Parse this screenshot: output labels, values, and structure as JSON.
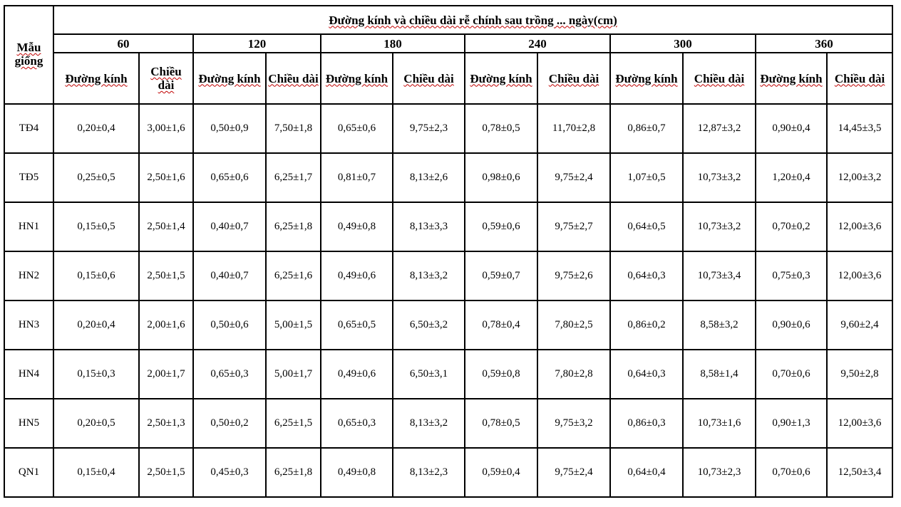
{
  "table": {
    "row_header": "Mẫu giống",
    "title": "Đường kính và chiều dài rễ chính sau trồng ... ngày(cm)",
    "days": [
      "60",
      "120",
      "180",
      "240",
      "300",
      "360"
    ],
    "sub_headers": [
      "Đường kính",
      "Chiều dài",
      "Đường kính",
      "Chiều dài",
      "Đường kính",
      "Chiều dài",
      "Đường kính",
      "Chiều dài",
      "Đường kính",
      "Chiều dài",
      "Đường kính",
      "Chiều dài"
    ],
    "rows": [
      {
        "name": "TĐ4",
        "cells": [
          "0,20±0,4",
          "3,00±1,6",
          "0,50±0,9",
          "7,50±1,8",
          "0,65±0,6",
          "9,75±2,3",
          "0,78±0,5",
          "11,70±2,8",
          "0,86±0,7",
          "12,87±3,2",
          "0,90±0,4",
          "14,45±3,5"
        ]
      },
      {
        "name": "TĐ5",
        "cells": [
          "0,25±0,5",
          "2,50±1,6",
          "0,65±0,6",
          "6,25±1,7",
          "0,81±0,7",
          "8,13±2,6",
          "0,98±0,6",
          "9,75±2,4",
          "1,07±0,5",
          "10,73±3,2",
          "1,20±0,4",
          "12,00±3,2"
        ]
      },
      {
        "name": "HN1",
        "cells": [
          "0,15±0,5",
          "2,50±1,4",
          "0,40±0,7",
          "6,25±1,8",
          "0,49±0,8",
          "8,13±3,3",
          "0,59±0,6",
          "9,75±2,7",
          "0,64±0,5",
          "10,73±3,2",
          "0,70±0,2",
          "12,00±3,6"
        ]
      },
      {
        "name": "HN2",
        "cells": [
          "0,15±0,6",
          "2,50±1,5",
          "0,40±0,7",
          "6,25±1,6",
          "0,49±0,6",
          "8,13±3,2",
          "0,59±0,7",
          "9,75±2,6",
          "0,64±0,3",
          "10,73±3,4",
          "0,75±0,3",
          "12,00±3,6"
        ]
      },
      {
        "name": "HN3",
        "cells": [
          "0,20±0,4",
          "2,00±1,6",
          "0,50±0,6",
          "5,00±1,5",
          "0,65±0,5",
          "6,50±3,2",
          "0,78±0,4",
          "7,80±2,5",
          "0,86±0,2",
          "8,58±3,2",
          "0,90±0,6",
          "9,60±2,4"
        ]
      },
      {
        "name": "HN4",
        "cells": [
          "0,15±0,3",
          "2,00±1,7",
          "0,65±0,3",
          "5,00±1,7",
          "0,49±0,6",
          "6,50±3,1",
          "0,59±0,8",
          "7,80±2,8",
          "0,64±0,3",
          "8,58±1,4",
          "0,70±0,6",
          "9,50±2,8"
        ]
      },
      {
        "name": "HN5",
        "cells": [
          "0,20±0,5",
          "2,50±1,3",
          "0,50±0,2",
          "6,25±1,5",
          "0,65±0,3",
          "8,13±3,2",
          "0,78±0,5",
          "9,75±3,2",
          "0,86±0,3",
          "10,73±1,6",
          "0,90±1,3",
          "12,00±3,6"
        ]
      },
      {
        "name": "QN1",
        "cells": [
          "0,15±0,4",
          "2,50±1,5",
          "0,45±0,3",
          "6,25±1,8",
          "0,49±0,8",
          "8,13±2,3",
          "0,59±0,4",
          "9,75±2,4",
          "0,64±0,4",
          "10,73±2,3",
          "0,70±0,6",
          "12,50±3,4"
        ]
      }
    ]
  }
}
